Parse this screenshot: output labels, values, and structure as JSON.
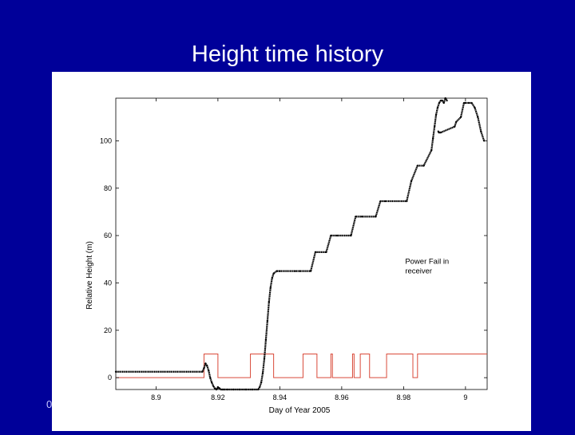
{
  "slide": {
    "title": "Height time history",
    "footer_mark": "0"
  },
  "colors": {
    "background": "#000099",
    "height_trace": "#000000",
    "power_trace": "#d94a3a"
  },
  "chart_data": {
    "type": "line",
    "title": "",
    "xlabel": "Day of Year 2005",
    "ylabel": "Relative Height (m)",
    "xlim": [
      8.887,
      9.007
    ],
    "ylim": [
      -5,
      118
    ],
    "x_ticks": [
      8.9,
      8.92,
      8.94,
      8.96,
      8.98,
      9.0
    ],
    "x_tick_labels": [
      "8.9",
      "8.92",
      "8.94",
      "8.96",
      "8.98",
      "9"
    ],
    "y_ticks": [
      0,
      20,
      40,
      60,
      80,
      100
    ],
    "y_tick_labels": [
      "0",
      "20",
      "40",
      "60",
      "80",
      "100"
    ],
    "grid": false,
    "annotation": {
      "lines": [
        "Power Fail in",
        "receiver"
      ],
      "x": 8.9805,
      "y": 48
    },
    "series": [
      {
        "key": "height",
        "style": "dots",
        "x": [
          8.887,
          8.915,
          8.9155,
          8.916,
          8.9165,
          8.917,
          8.9175,
          8.918,
          8.9185,
          8.919,
          8.9195,
          8.92,
          8.9205,
          8.921,
          8.9215,
          8.922,
          8.923,
          8.925,
          8.927,
          8.929,
          8.931,
          8.933,
          8.9335,
          8.934,
          8.9345,
          8.935,
          8.9355,
          8.936,
          8.9365,
          8.937,
          8.9375,
          8.938,
          8.939,
          8.94,
          8.945,
          8.9465,
          8.95,
          8.9515,
          8.955,
          8.9565,
          8.9585,
          8.963,
          8.9645,
          8.9665,
          8.971,
          8.9725,
          8.974,
          8.981,
          8.9825,
          8.9845,
          8.9865,
          8.9865,
          8.989,
          8.9895,
          8.99,
          8.9905,
          8.991,
          8.9915,
          8.992,
          8.9925,
          8.993,
          8.9935,
          8.994
        ],
        "y": [
          2.5,
          2.5,
          4,
          6,
          5,
          3,
          0,
          -2,
          -3.5,
          -4.5,
          -5,
          -4,
          -4.5,
          -5,
          -5,
          -5,
          -5,
          -5,
          -5,
          -5,
          -5,
          -5,
          -4,
          -2,
          2,
          8,
          16,
          24,
          32,
          38,
          42,
          44,
          45,
          45,
          45,
          45,
          45,
          53,
          53,
          60,
          60,
          60,
          68,
          68,
          68,
          74.5,
          74.5,
          74.5,
          83,
          89.5,
          89.5,
          89.5,
          96,
          101,
          106,
          111,
          114,
          116,
          117,
          117,
          116,
          118,
          117
        ]
      },
      {
        "key": "height_after_fail",
        "style": "dots",
        "x": [
          8.9912,
          8.9914,
          8.9916,
          8.9918,
          8.992,
          8.9965,
          8.997,
          8.9985,
          8.9995,
          9.0,
          9.001,
          9.002,
          9.003,
          9.004,
          9.005,
          9.006
        ],
        "y": [
          104,
          103.5,
          103.5,
          103.5,
          103.5,
          106,
          108,
          110,
          116,
          116,
          116,
          116,
          114,
          110,
          104,
          100
        ]
      },
      {
        "key": "power_status",
        "style": "step",
        "x": [
          8.887,
          8.9155,
          8.9155,
          8.92,
          8.92,
          8.9305,
          8.9305,
          8.938,
          8.938,
          8.9475,
          8.9475,
          8.952,
          8.952,
          8.9565,
          8.9565,
          8.957,
          8.957,
          8.9635,
          8.9635,
          8.964,
          8.964,
          8.966,
          8.966,
          8.969,
          8.969,
          8.9745,
          8.9745,
          8.983,
          8.983,
          8.9845,
          8.9845,
          9.007
        ],
        "y": [
          0,
          0,
          10,
          10,
          0,
          0,
          10,
          10,
          0,
          0,
          10,
          10,
          0,
          0,
          10,
          10,
          0,
          0,
          10,
          10,
          0,
          0,
          10,
          10,
          0,
          0,
          10,
          10,
          0,
          0,
          10,
          10
        ]
      }
    ]
  }
}
